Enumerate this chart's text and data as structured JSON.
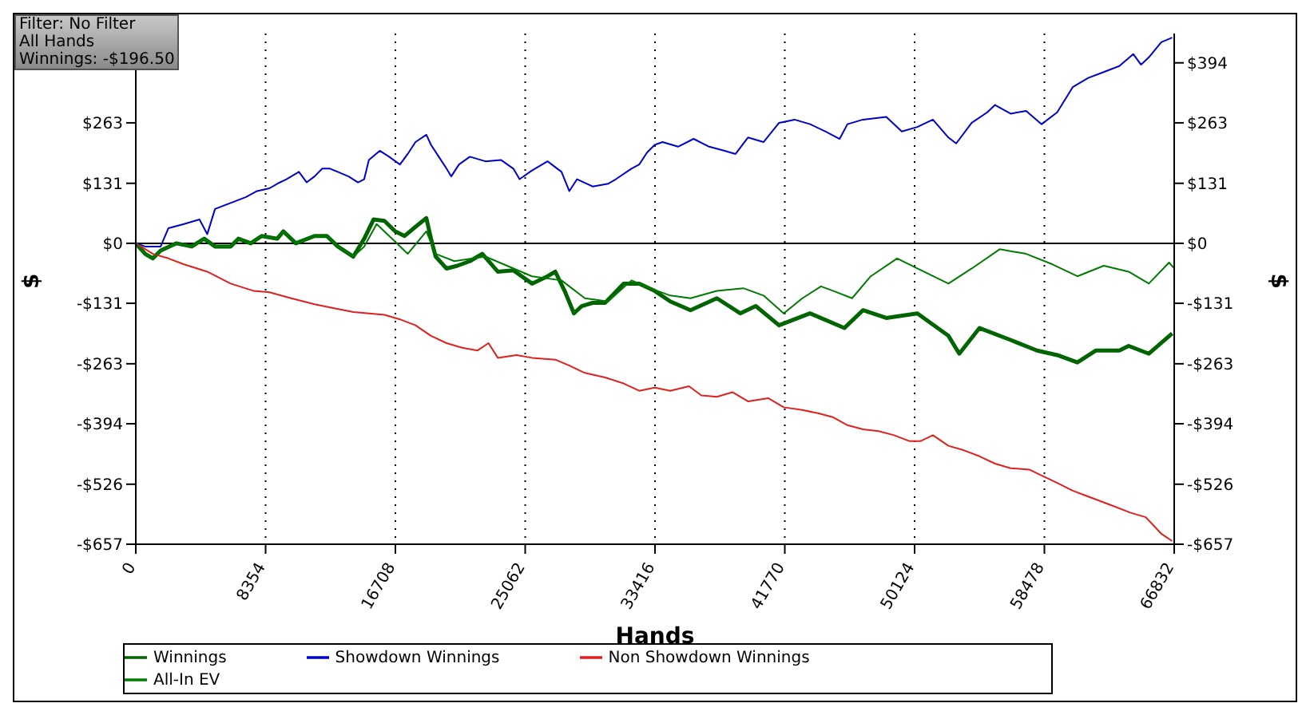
{
  "chart_data": {
    "type": "line",
    "xlabel": "Hands",
    "ylabel": "$",
    "y2label": "$",
    "annotations": [
      "Filter: No Filter",
      "All Hands",
      "Winnings: -$196.50"
    ],
    "xlim": [
      0,
      66832
    ],
    "xticks": [
      0,
      8354,
      16708,
      25062,
      33416,
      41770,
      50124,
      58478,
      66832
    ],
    "ylim": [
      -657,
      458
    ],
    "yticks": [
      {
        "value": -657,
        "label": "-$657"
      },
      {
        "value": -526,
        "label": "-$526"
      },
      {
        "value": -394,
        "label": "-$394"
      },
      {
        "value": -263,
        "label": "-$263"
      },
      {
        "value": -131,
        "label": "-$131"
      },
      {
        "value": 0,
        "label": "$0"
      },
      {
        "value": 131,
        "label": "$131"
      },
      {
        "value": 263,
        "label": "$263"
      },
      {
        "value": 394,
        "label": null
      }
    ],
    "y2lim": [
      -657,
      458
    ],
    "y2ticks": [
      {
        "value": -657,
        "label": "-$657"
      },
      {
        "value": -526,
        "label": "-$526"
      },
      {
        "value": -394,
        "label": "-$394"
      },
      {
        "value": -263,
        "label": "-$263"
      },
      {
        "value": -131,
        "label": "-$131"
      },
      {
        "value": 0,
        "label": "$0"
      },
      {
        "value": 131,
        "label": "$131"
      },
      {
        "value": 263,
        "label": "$263"
      },
      {
        "value": 394,
        "label": "$394"
      }
    ],
    "grid": true,
    "legend": "bottom",
    "marker": "none",
    "line_style": "solid",
    "ref_lines": [
      {
        "axis": "y",
        "value": 0,
        "color": "#000000"
      }
    ],
    "series": [
      {
        "name": "Winnings",
        "color": "#006400",
        "x": [
          0,
          600,
          1100,
          1600,
          2600,
          3600,
          4400,
          5100,
          6100,
          6600,
          7400,
          8100,
          9100,
          9500,
          10300,
          11500,
          12300,
          13000,
          14000,
          14700,
          15300,
          16000,
          16700,
          17300,
          18000,
          18700,
          19000,
          19300,
          20000,
          20700,
          21500,
          22300,
          23300,
          24300,
          25500,
          26500,
          27000,
          27600,
          28200,
          28700,
          29400,
          30200,
          31400,
          32400,
          33400,
          34400,
          35700,
          37400,
          38900,
          39900,
          41400,
          43400,
          45600,
          46800,
          48300,
          50300,
          52300,
          53000,
          54300,
          56300,
          58000,
          59300,
          60600,
          61800,
          63300,
          63900,
          65200,
          66700
        ],
        "values": [
          0,
          -23,
          -33,
          -16,
          0,
          -7,
          10,
          -7,
          -7,
          10,
          0,
          16,
          10,
          26,
          0,
          16,
          16,
          -7,
          -29,
          10,
          52,
          49,
          26,
          16,
          36,
          55,
          10,
          -29,
          -55,
          -49,
          -39,
          -23,
          -62,
          -59,
          -88,
          -72,
          -62,
          -104,
          -153,
          -137,
          -130,
          -130,
          -88,
          -88,
          -104,
          -127,
          -146,
          -120,
          -153,
          -137,
          -179,
          -153,
          -185,
          -146,
          -163,
          -153,
          -202,
          -241,
          -185,
          -211,
          -234,
          -244,
          -260,
          -234,
          -234,
          -224,
          -241,
          -197
        ]
      },
      {
        "name": "Showdown Winnings",
        "color": "#0000cc",
        "x": [
          0,
          600,
          1600,
          2100,
          3100,
          4100,
          4600,
          5100,
          6100,
          7100,
          7800,
          8600,
          9100,
          9700,
          10000,
          10500,
          11000,
          11500,
          12000,
          12500,
          13000,
          13700,
          14300,
          14700,
          15000,
          15700,
          16300,
          17000,
          17500,
          18000,
          18700,
          19000,
          19500,
          20000,
          20300,
          20800,
          21500,
          22500,
          23500,
          24300,
          24700,
          25500,
          26500,
          27400,
          27900,
          28400,
          29400,
          30400,
          30900,
          31900,
          32400,
          32900,
          33400,
          33900,
          34900,
          35900,
          36900,
          37900,
          38600,
          39400,
          40400,
          41400,
          42400,
          43400,
          44400,
          45300,
          45800,
          46800,
          48300,
          49300,
          50300,
          51300,
          52300,
          52800,
          53800,
          54800,
          55300,
          56300,
          57300,
          58300,
          59300,
          60300,
          61300,
          62300,
          63300,
          64200,
          64700,
          65200,
          66000,
          66700
        ],
        "values": [
          0,
          -7,
          -7,
          33,
          42,
          52,
          20,
          75,
          88,
          101,
          114,
          120,
          130,
          140,
          146,
          156,
          133,
          146,
          163,
          163,
          156,
          146,
          133,
          140,
          182,
          202,
          189,
          172,
          195,
          221,
          237,
          215,
          189,
          163,
          146,
          172,
          189,
          179,
          182,
          163,
          140,
          159,
          179,
          156,
          114,
          140,
          124,
          130,
          140,
          163,
          172,
          198,
          215,
          221,
          211,
          228,
          211,
          202,
          195,
          231,
          221,
          263,
          270,
          260,
          244,
          228,
          260,
          270,
          276,
          244,
          254,
          270,
          231,
          218,
          263,
          286,
          302,
          283,
          289,
          260,
          286,
          341,
          361,
          374,
          387,
          413,
          390,
          406,
          439,
          449
        ]
      },
      {
        "name": "Non Showdown Winnings",
        "color": "#e0201c",
        "x": [
          0,
          1100,
          2100,
          3100,
          4600,
          6100,
          7600,
          8600,
          10000,
          11500,
          12500,
          14000,
          15000,
          16000,
          17000,
          18000,
          19000,
          20000,
          21000,
          22000,
          22700,
          23300,
          24500,
          25500,
          27000,
          27900,
          28900,
          30200,
          31400,
          32400,
          33400,
          34400,
          35600,
          36400,
          37400,
          38400,
          39400,
          40700,
          41700,
          42900,
          43900,
          44900,
          45800,
          46800,
          47800,
          48800,
          49800,
          50500,
          51300,
          52300,
          53300,
          54300,
          55300,
          56300,
          57500,
          58300,
          59300,
          60300,
          61300,
          62800,
          64000,
          65000,
          66000,
          66700
        ],
        "values": [
          0,
          -23,
          -33,
          -46,
          -62,
          -88,
          -104,
          -107,
          -120,
          -133,
          -140,
          -150,
          -153,
          -156,
          -166,
          -179,
          -202,
          -218,
          -228,
          -234,
          -218,
          -250,
          -244,
          -250,
          -254,
          -267,
          -283,
          -293,
          -306,
          -322,
          -315,
          -322,
          -312,
          -332,
          -335,
          -325,
          -345,
          -338,
          -358,
          -364,
          -371,
          -380,
          -397,
          -406,
          -410,
          -419,
          -432,
          -432,
          -419,
          -442,
          -452,
          -465,
          -481,
          -491,
          -494,
          -507,
          -523,
          -540,
          -553,
          -572,
          -588,
          -598,
          -634,
          -650
        ]
      },
      {
        "name": "All-In EV",
        "color": "#007a00",
        "x": [
          0,
          600,
          1100,
          1600,
          2600,
          3600,
          4400,
          5100,
          6100,
          6600,
          7400,
          8100,
          9100,
          9500,
          10300,
          11500,
          12300,
          13000,
          14000,
          14700,
          15500,
          16500,
          17500,
          18700,
          19300,
          20500,
          22500,
          25500,
          27400,
          28900,
          30400,
          31900,
          33100,
          34400,
          35700,
          37400,
          39100,
          40400,
          41700,
          42900,
          44100,
          44900,
          46100,
          47300,
          49000,
          50300,
          52300,
          53800,
          55600,
          57300,
          59000,
          60600,
          62300,
          63900,
          65200,
          66500,
          66832
        ],
        "values": [
          0,
          -23,
          -33,
          -16,
          0,
          -7,
          10,
          -7,
          -7,
          10,
          0,
          16,
          10,
          26,
          0,
          16,
          16,
          -7,
          -29,
          -7,
          42,
          10,
          -23,
          26,
          -23,
          -39,
          -29,
          -72,
          -81,
          -120,
          -127,
          -81,
          -98,
          -114,
          -120,
          -104,
          -98,
          -114,
          -153,
          -120,
          -94,
          -104,
          -120,
          -72,
          -33,
          -55,
          -88,
          -55,
          -13,
          -23,
          -46,
          -72,
          -49,
          -62,
          -88,
          -42,
          -55
        ]
      }
    ]
  }
}
